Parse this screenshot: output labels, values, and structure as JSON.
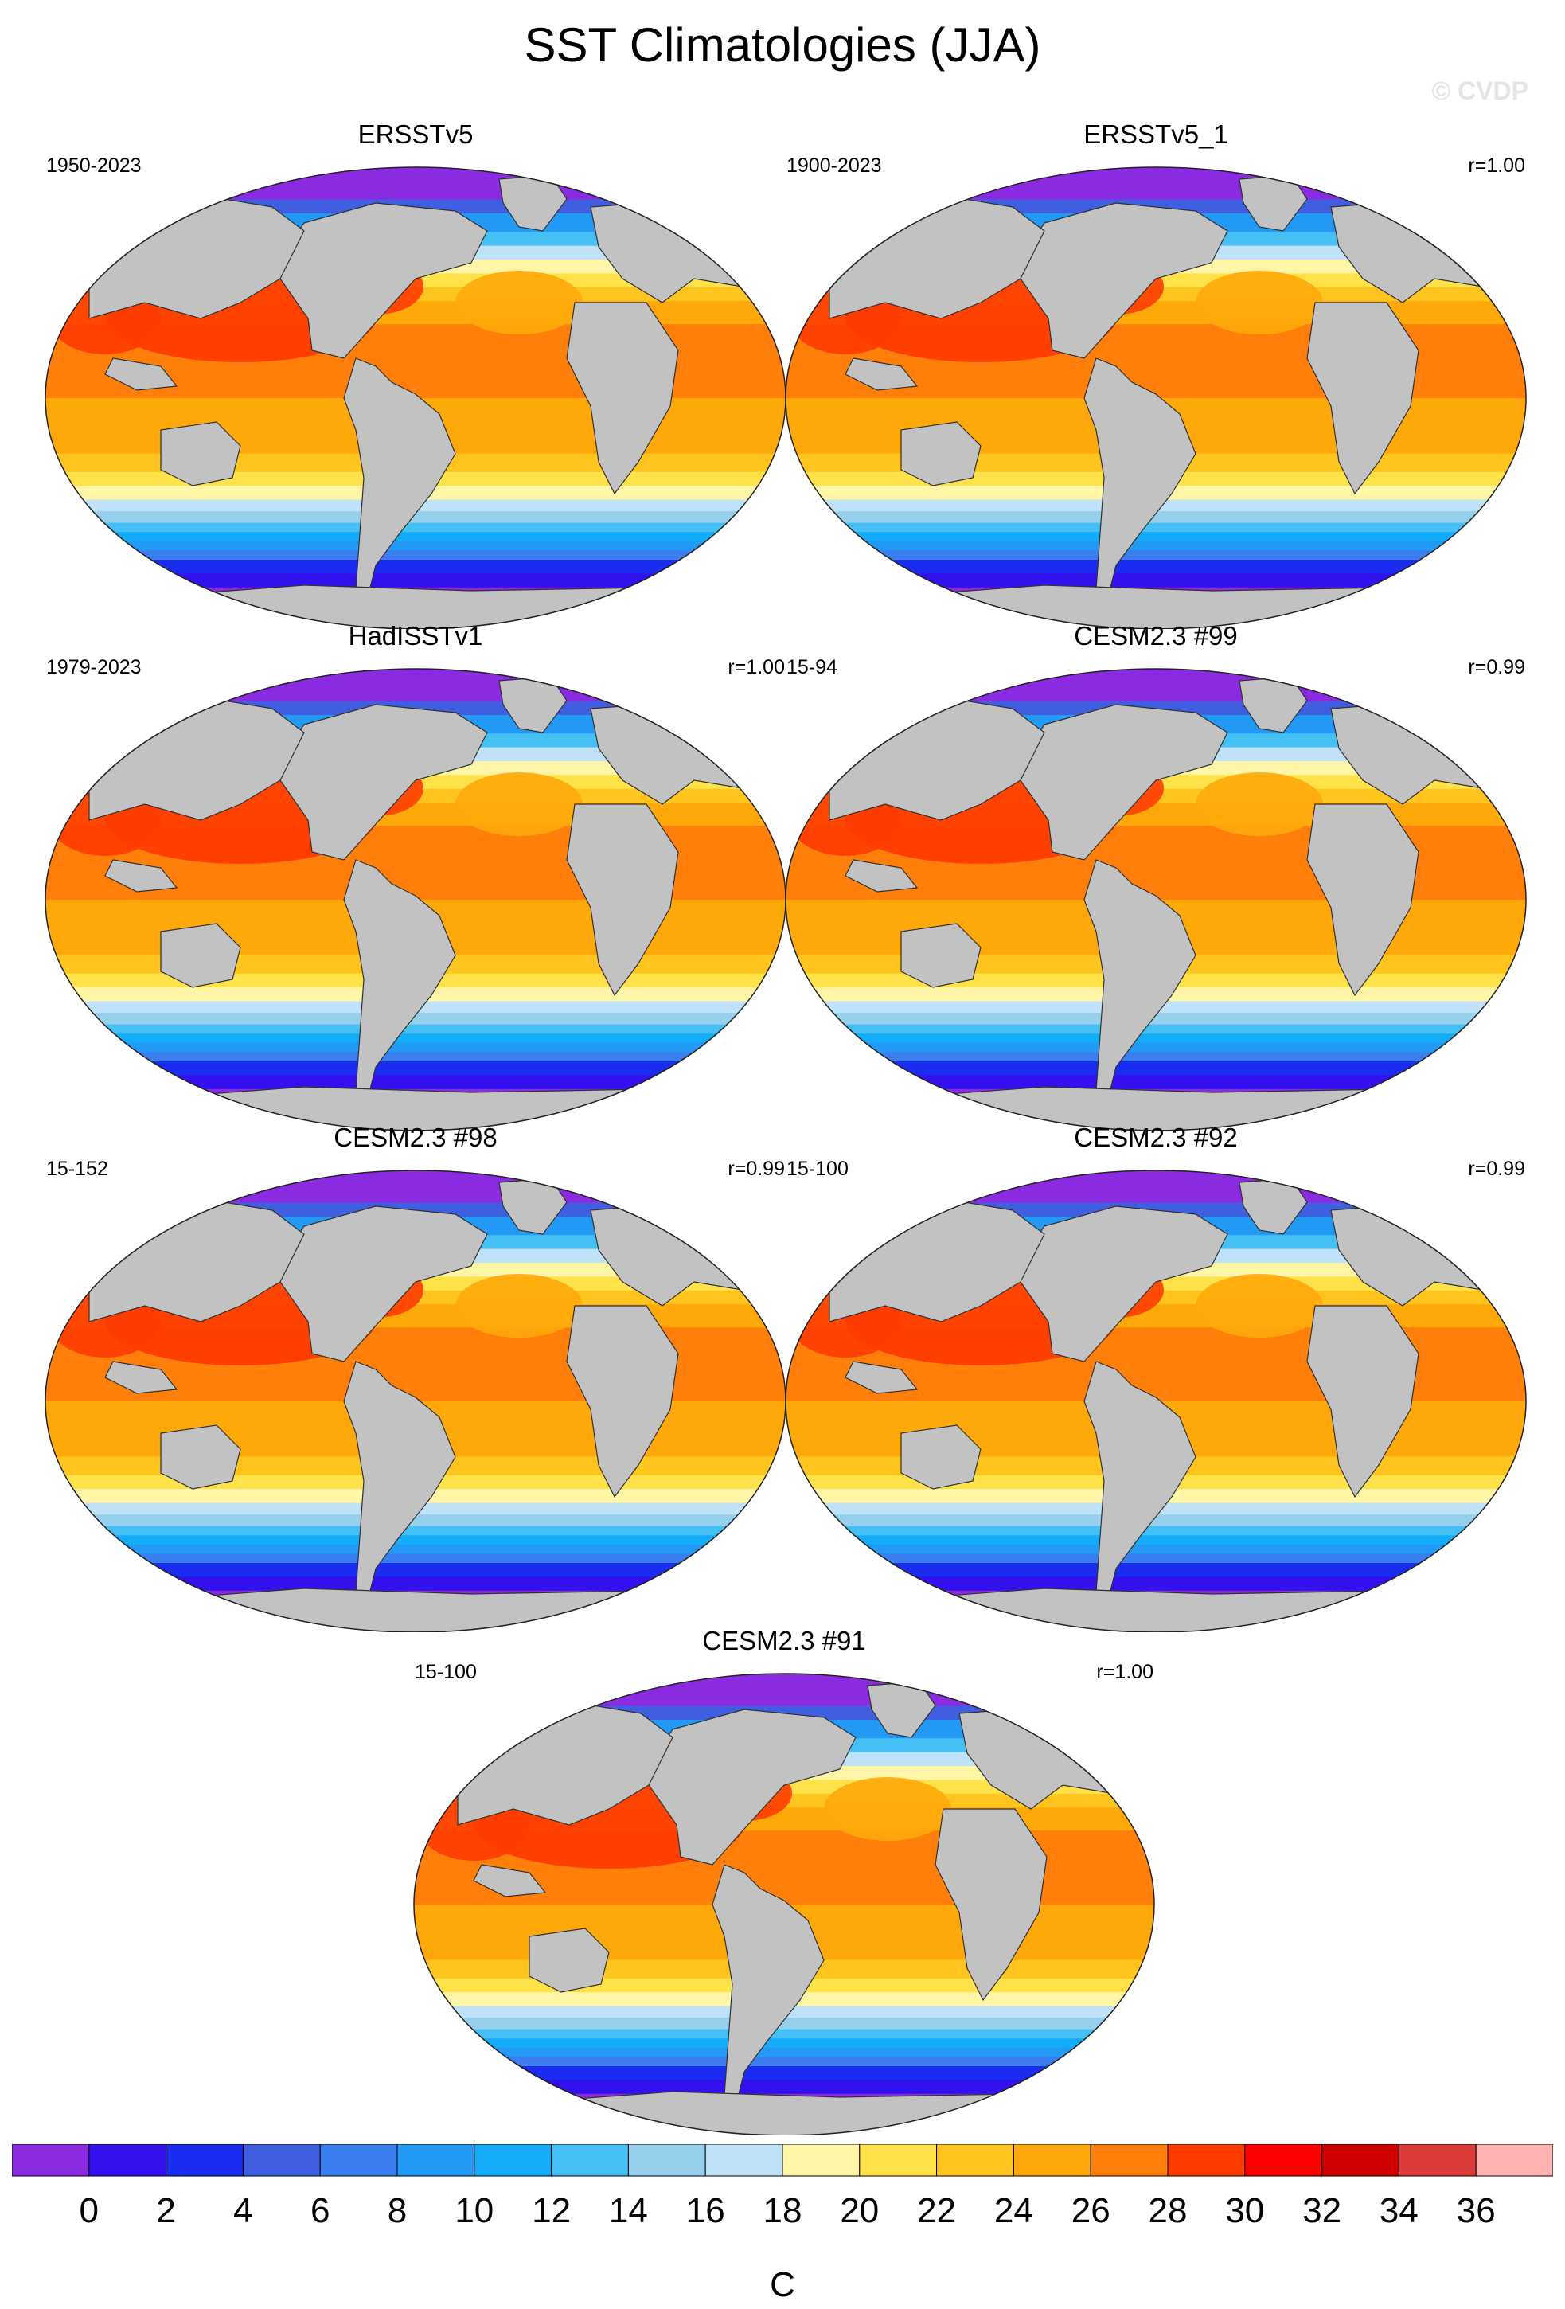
{
  "title": "SST Climatologies (JJA)",
  "watermark": "© CVDP",
  "panels": [
    {
      "name": "ERSSTv5",
      "period": "1950-2023",
      "corr": ""
    },
    {
      "name": "ERSSTv5_1",
      "period": "1900-2023",
      "corr": "r=1.00"
    },
    {
      "name": "HadISSTv1",
      "period": "1979-2023",
      "corr": "r=1.00"
    },
    {
      "name": "CESM2.3 #99",
      "period": "15-94",
      "corr": "r=0.99"
    },
    {
      "name": "CESM2.3 #98",
      "period": "15-152",
      "corr": "r=0.99"
    },
    {
      "name": "CESM2.3 #92",
      "period": "15-100",
      "corr": "r=0.99"
    },
    {
      "name": "CESM2.3 #91",
      "period": "15-100",
      "corr": "r=1.00"
    }
  ],
  "colorbar": {
    "unit": "C",
    "tick_labels": [
      "0",
      "2",
      "4",
      "6",
      "8",
      "10",
      "12",
      "14",
      "16",
      "18",
      "20",
      "22",
      "24",
      "26",
      "28",
      "30",
      "32",
      "34",
      "36"
    ],
    "colors": [
      "#8a2be2",
      "#3311ee",
      "#1a2cf0",
      "#3f5fe0",
      "#3a7ef0",
      "#2299f5",
      "#14acf8",
      "#45c0f5",
      "#96d0ec",
      "#bfe2f8",
      "#fff5a6",
      "#ffe24a",
      "#ffc51e",
      "#ffa80a",
      "#ff7f0a",
      "#ff3c00",
      "#ff0000",
      "#d10000",
      "#dd3a3a",
      "#ffb3b3"
    ]
  }
}
